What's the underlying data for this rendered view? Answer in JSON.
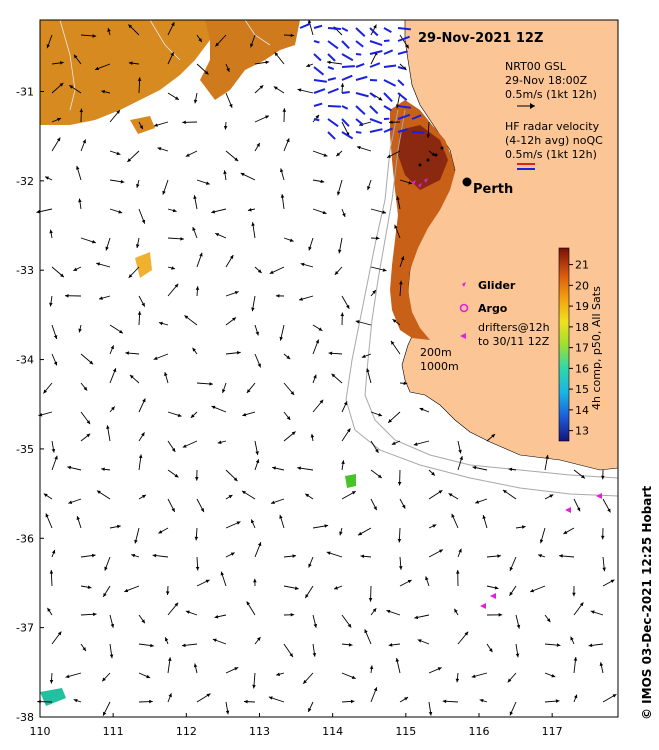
{
  "map": {
    "title": "29-Nov-2021 12Z",
    "city_label": "Perth",
    "x_ticks": [
      "110",
      "111",
      "112",
      "113",
      "114",
      "115",
      "116",
      "117"
    ],
    "y_ticks": [
      "-31",
      "-32",
      "-33",
      "-34",
      "-35",
      "-36",
      "-37",
      "-38"
    ],
    "lon_range": [
      110,
      117.9
    ],
    "lat_range": [
      -38,
      -30.2
    ],
    "depth_labels": [
      "200m",
      "1000m"
    ]
  },
  "legend": {
    "model_line1": "NRT00 GSL",
    "model_line2": "29-Nov 18:00Z",
    "model_line3": "0.5m/s (1kt 12h)",
    "radar_line1": "HF radar velocity",
    "radar_line2": "(4-12h avg) noQC",
    "radar_line3": "0.5m/s (1kt 12h)",
    "glider": "Glider",
    "argo": "Argo",
    "drifters_line1": "drifters@12h",
    "drifters_line2": "to 30/11 12Z"
  },
  "colorbar": {
    "label": "4h comp, p50, All Sats",
    "ticks": [
      "21",
      "20",
      "19",
      "18",
      "17",
      "16",
      "15",
      "14",
      "13"
    ],
    "range": [
      12.5,
      21.8
    ]
  },
  "credit": "© IMOS 03-Dec-2021 12:25 Hobart",
  "colors": {
    "land": "#fbc596",
    "model_arrow": "#000000",
    "radar_arrow": "#1a22e0",
    "glider": "#e020e0",
    "argo": "#e020e0",
    "drifter": "#e020e0",
    "isobath": "#a8a8a8",
    "sst_low": "#1a2a90",
    "sst_high": "#8a1508"
  }
}
